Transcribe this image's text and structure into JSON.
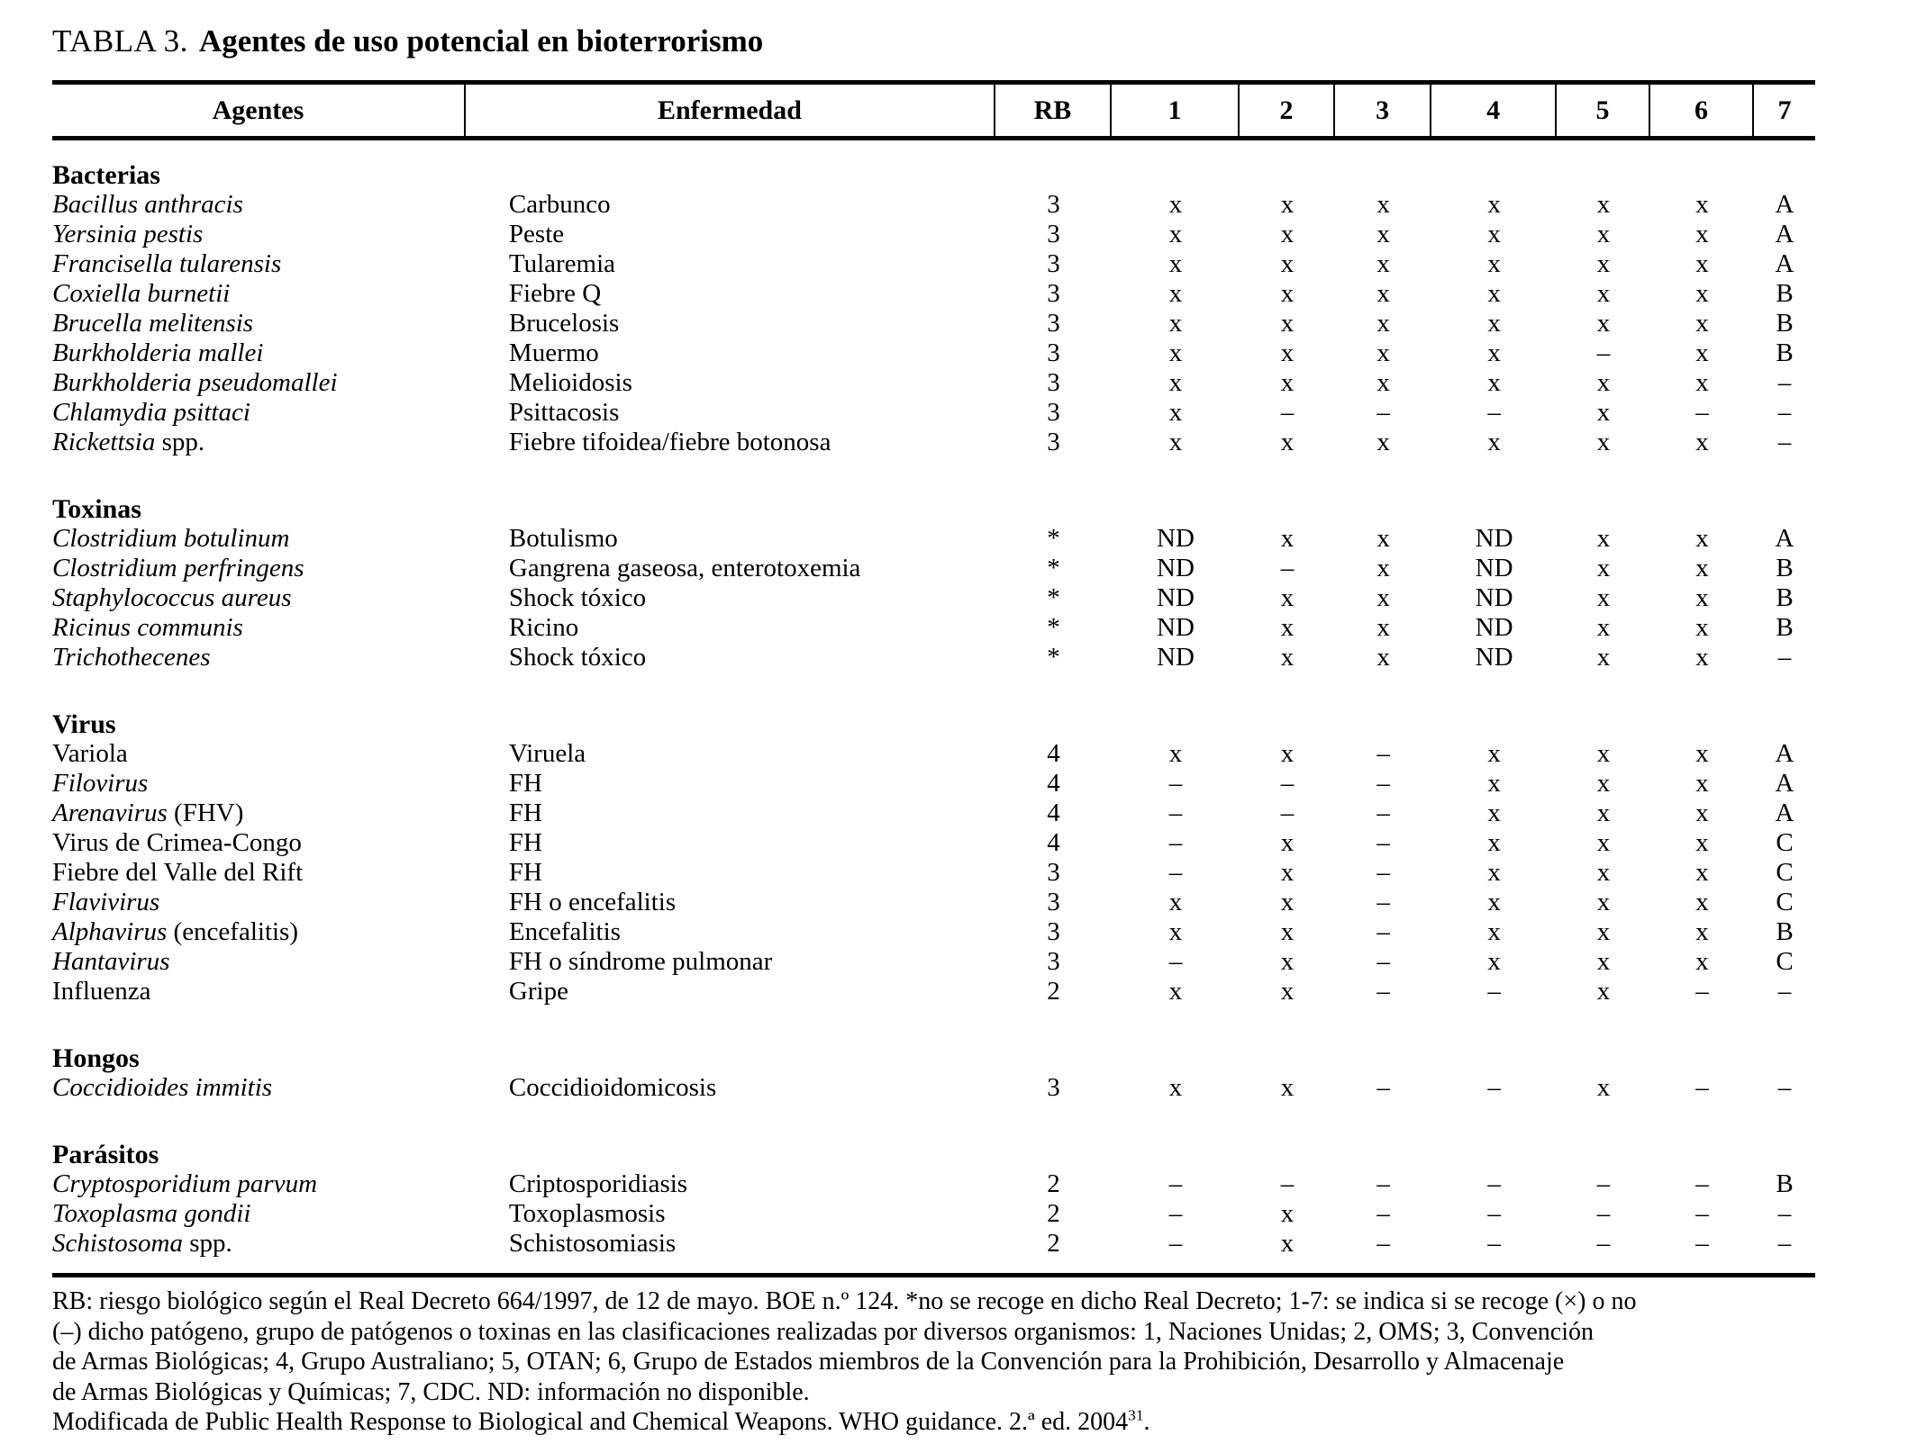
{
  "caption": {
    "label": "TABLA 3.",
    "title": "Agentes de uso potencial en bioterrorismo"
  },
  "table": {
    "headers": [
      "Agentes",
      "Enfermedad",
      "RB",
      "1",
      "2",
      "3",
      "4",
      "5",
      "6",
      "7"
    ],
    "sections": [
      {
        "name": "Bacterias",
        "rows": [
          {
            "agent": "Bacillus anthracis",
            "italic": true,
            "suffix": "",
            "disease": "Carbunco",
            "rb": "3",
            "vals": [
              "x",
              "x",
              "x",
              "x",
              "x",
              "x",
              "A"
            ]
          },
          {
            "agent": "Yersinia pestis",
            "italic": true,
            "suffix": "",
            "disease": "Peste",
            "rb": "3",
            "vals": [
              "x",
              "x",
              "x",
              "x",
              "x",
              "x",
              "A"
            ]
          },
          {
            "agent": "Francisella tularensis",
            "italic": true,
            "suffix": "",
            "disease": "Tularemia",
            "rb": "3",
            "vals": [
              "x",
              "x",
              "x",
              "x",
              "x",
              "x",
              "A"
            ]
          },
          {
            "agent": "Coxiella burnetii",
            "italic": true,
            "suffix": "",
            "disease": "Fiebre Q",
            "rb": "3",
            "vals": [
              "x",
              "x",
              "x",
              "x",
              "x",
              "x",
              "B"
            ]
          },
          {
            "agent": "Brucella melitensis",
            "italic": true,
            "suffix": "",
            "disease": "Brucelosis",
            "rb": "3",
            "vals": [
              "x",
              "x",
              "x",
              "x",
              "x",
              "x",
              "B"
            ]
          },
          {
            "agent": "Burkholderia mallei",
            "italic": true,
            "suffix": "",
            "disease": "Muermo",
            "rb": "3",
            "vals": [
              "x",
              "x",
              "x",
              "x",
              "–",
              "x",
              "B"
            ]
          },
          {
            "agent": "Burkholderia pseudomallei",
            "italic": true,
            "suffix": "",
            "disease": "Melioidosis",
            "rb": "3",
            "vals": [
              "x",
              "x",
              "x",
              "x",
              "x",
              "x",
              "–"
            ]
          },
          {
            "agent": "Chlamydia psittaci",
            "italic": true,
            "suffix": "",
            "disease": "Psittacosis",
            "rb": "3",
            "vals": [
              "x",
              "–",
              "–",
              "–",
              "x",
              "–",
              "–"
            ]
          },
          {
            "agent": "Rickettsia",
            "italic": true,
            "suffix": " spp.",
            "disease": "Fiebre tifoidea/fiebre botonosa",
            "rb": "3",
            "vals": [
              "x",
              "x",
              "x",
              "x",
              "x",
              "x",
              "–"
            ]
          }
        ]
      },
      {
        "name": "Toxinas",
        "rows": [
          {
            "agent": "Clostridium botulinum",
            "italic": true,
            "suffix": "",
            "disease": "Botulismo",
            "rb": "*",
            "vals": [
              "ND",
              "x",
              "x",
              "ND",
              "x",
              "x",
              "A"
            ]
          },
          {
            "agent": "Clostridium perfringens",
            "italic": true,
            "suffix": "",
            "disease": "Gangrena gaseosa, enterotoxemia",
            "rb": "*",
            "vals": [
              "ND",
              "–",
              "x",
              "ND",
              "x",
              "x",
              "B"
            ]
          },
          {
            "agent": "Staphylococcus aureus",
            "italic": true,
            "suffix": "",
            "disease": "Shock tóxico",
            "rb": "*",
            "vals": [
              "ND",
              "x",
              "x",
              "ND",
              "x",
              "x",
              "B"
            ]
          },
          {
            "agent": "Ricinus communis",
            "italic": true,
            "suffix": "",
            "disease": "Ricino",
            "rb": "*",
            "vals": [
              "ND",
              "x",
              "x",
              "ND",
              "x",
              "x",
              "B"
            ]
          },
          {
            "agent": "Trichothecenes",
            "italic": true,
            "suffix": "",
            "disease": "Shock tóxico",
            "rb": "*",
            "vals": [
              "ND",
              "x",
              "x",
              "ND",
              "x",
              "x",
              "–"
            ]
          }
        ]
      },
      {
        "name": "Virus",
        "rows": [
          {
            "agent": "Variola",
            "italic": false,
            "suffix": "",
            "disease": "Viruela",
            "rb": "4",
            "vals": [
              "x",
              "x",
              "–",
              "x",
              "x",
              "x",
              "A"
            ]
          },
          {
            "agent": "Filovirus",
            "italic": true,
            "suffix": "",
            "disease": "FH",
            "rb": "4",
            "vals": [
              "–",
              "–",
              "–",
              "x",
              "x",
              "x",
              "A"
            ]
          },
          {
            "agent": "Arenavirus",
            "italic": true,
            "suffix": " (FHV)",
            "disease": "FH",
            "rb": "4",
            "vals": [
              "–",
              "–",
              "–",
              "x",
              "x",
              "x",
              "A"
            ]
          },
          {
            "agent": "Virus de Crimea-Congo",
            "italic": false,
            "suffix": "",
            "disease": "FH",
            "rb": "4",
            "vals": [
              "–",
              "x",
              "–",
              "x",
              "x",
              "x",
              "C"
            ]
          },
          {
            "agent": "Fiebre del Valle del Rift",
            "italic": false,
            "suffix": "",
            "disease": "FH",
            "rb": "3",
            "vals": [
              "–",
              "x",
              "–",
              "x",
              "x",
              "x",
              "C"
            ]
          },
          {
            "agent": "Flavivirus",
            "italic": true,
            "suffix": "",
            "disease": "FH o encefalitis",
            "rb": "3",
            "vals": [
              "x",
              "x",
              "–",
              "x",
              "x",
              "x",
              "C"
            ]
          },
          {
            "agent": "Alphavirus",
            "italic": true,
            "suffix": " (encefalitis)",
            "disease": "Encefalitis",
            "rb": "3",
            "vals": [
              "x",
              "x",
              "–",
              "x",
              "x",
              "x",
              "B"
            ]
          },
          {
            "agent": "Hantavirus",
            "italic": true,
            "suffix": "",
            "disease": "FH o síndrome pulmonar",
            "rb": "3",
            "vals": [
              "–",
              "x",
              "–",
              "x",
              "x",
              "x",
              "C"
            ]
          },
          {
            "agent": "Influenza",
            "italic": false,
            "suffix": "",
            "disease": "Gripe",
            "rb": "2",
            "vals": [
              "x",
              "x",
              "–",
              "–",
              "x",
              "–",
              "–"
            ]
          }
        ]
      },
      {
        "name": "Hongos",
        "rows": [
          {
            "agent": "Coccidioides immitis",
            "italic": true,
            "suffix": "",
            "disease": "Coccidioidomicosis",
            "rb": "3",
            "vals": [
              "x",
              "x",
              "–",
              "–",
              "x",
              "–",
              "–"
            ]
          }
        ]
      },
      {
        "name": "Parásitos",
        "rows": [
          {
            "agent": "Cryptosporidium parvum",
            "italic": true,
            "suffix": "",
            "disease": "Criptosporidiasis",
            "rb": "2",
            "vals": [
              "–",
              "–",
              "–",
              "–",
              "–",
              "–",
              "B"
            ]
          },
          {
            "agent": "Toxoplasma gondii",
            "italic": true,
            "suffix": "",
            "disease": "Toxoplasmosis",
            "rb": "2",
            "vals": [
              "–",
              "x",
              "–",
              "–",
              "–",
              "–",
              "–"
            ]
          },
          {
            "agent": "Schistosoma",
            "italic": true,
            "suffix": " spp.",
            "disease": "Schistosomiasis",
            "rb": "2",
            "vals": [
              "–",
              "x",
              "–",
              "–",
              "–",
              "–",
              "–"
            ]
          }
        ]
      }
    ]
  },
  "footnotes": {
    "lines": [
      "RB: riesgo biológico según el Real Decreto 664/1997, de 12 de mayo. BOE n.º 124. *no se recoge en dicho Real Decreto; 1-7: se indica si se recoge (×) o no",
      "(–) dicho patógeno, grupo de patógenos o toxinas en las clasificaciones realizadas por diversos organismos: 1, Naciones Unidas; 2, OMS; 3, Convención",
      "de Armas Biológicas; 4, Grupo Australiano; 5, OTAN; 6, Grupo de Estados miembros de la Convención para la Prohibición, Desarrollo y Almacenaje",
      "de Armas Biológicas y Químicas; 7, CDC. ND: información no disponible."
    ],
    "last_line": {
      "text": "Modificada de Public Health Response to Biological and Chemical Weapons. WHO guidance. 2.ª ed. 2004",
      "sup": "31",
      "tail": "."
    }
  }
}
